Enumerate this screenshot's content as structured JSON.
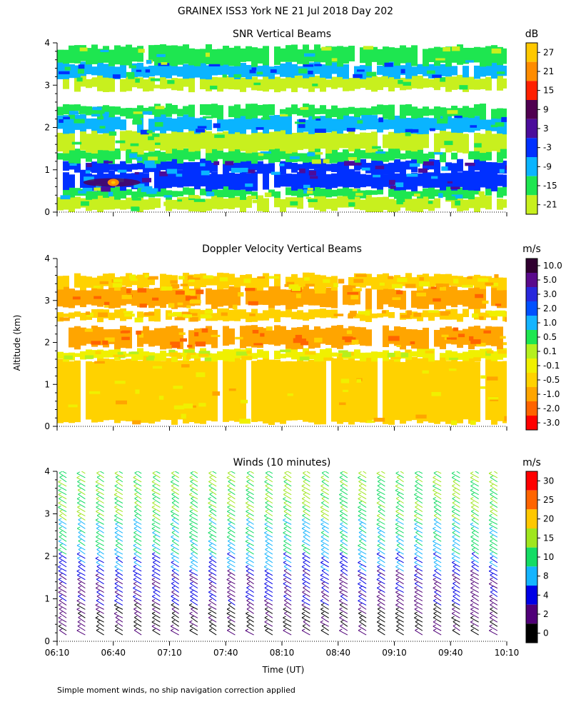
{
  "figure": {
    "title": "GRAINEX ISS3 York NE  21 Jul 2018 Day 202",
    "ylabel": "Altitude (km)",
    "xlabel": "Time (UT)",
    "footnote": "Simple moment winds, no ship navigation correction applied",
    "x_ticks": [
      "06:10",
      "06:40",
      "07:10",
      "07:40",
      "08:10",
      "08:40",
      "09:10",
      "09:40",
      "10:10"
    ],
    "y_ticks": [
      "0",
      "1",
      "2",
      "3",
      "4"
    ]
  },
  "chart_data": [
    {
      "type": "heatmap",
      "title": "SNR Vertical Beams",
      "units": "dB",
      "x_range": [
        "06:10",
        "10:10"
      ],
      "ylim": [
        0,
        4
      ],
      "colorbar": [
        {
          "label": "27",
          "color": "#ffc800"
        },
        {
          "label": "21",
          "color": "#ff8c00"
        },
        {
          "label": "15",
          "color": "#ff2000"
        },
        {
          "label": "9",
          "color": "#500050"
        },
        {
          "label": "3",
          "color": "#4b0c9b"
        },
        {
          "label": "-3",
          "color": "#0030ff"
        },
        {
          "label": "-9",
          "color": "#0ab4ff"
        },
        {
          "label": "-15",
          "color": "#1ee650"
        },
        {
          "label": "-21",
          "color": "#c8f01e"
        }
      ],
      "layers": [
        {
          "alt_low": 0.05,
          "alt_high": 0.35,
          "level": "-21"
        },
        {
          "alt_low": 0.35,
          "alt_high": 0.55,
          "level": "-15"
        },
        {
          "alt_low": 0.55,
          "alt_high": 0.95,
          "level": "-3"
        },
        {
          "alt_low": 0.95,
          "alt_high": 1.2,
          "level": "-3"
        },
        {
          "alt_low": 1.2,
          "alt_high": 1.45,
          "level": "-15"
        },
        {
          "alt_low": 1.45,
          "alt_high": 1.9,
          "level": "-21"
        },
        {
          "alt_low": 1.9,
          "alt_high": 2.25,
          "level": "-9"
        },
        {
          "alt_low": 2.25,
          "alt_high": 2.5,
          "level": "-15"
        },
        {
          "alt_low": 2.9,
          "alt_high": 3.2,
          "level": "-21"
        },
        {
          "alt_low": 3.2,
          "alt_high": 3.5,
          "level": "-9"
        },
        {
          "alt_low": 3.5,
          "alt_high": 3.9,
          "level": "-15"
        }
      ],
      "hotspot": {
        "time": "06:40",
        "alt": 0.7,
        "level": "21"
      }
    },
    {
      "type": "heatmap",
      "title": "Doppler Velocity Vertical Beams",
      "units": "m/s",
      "x_range": [
        "06:10",
        "10:10"
      ],
      "ylim": [
        0,
        4
      ],
      "colorbar": [
        {
          "label": "10.0",
          "color": "#300030"
        },
        {
          "label": "5.0",
          "color": "#5a0a8c"
        },
        {
          "label": "3.0",
          "color": "#2828dc"
        },
        {
          "label": "2.0",
          "color": "#0050ff"
        },
        {
          "label": "1.0",
          "color": "#14b4ff"
        },
        {
          "label": "0.5",
          "color": "#1ee650"
        },
        {
          "label": "0.1",
          "color": "#b4f01e"
        },
        {
          "label": "-0.1",
          "color": "#f0f000"
        },
        {
          "label": "-0.5",
          "color": "#ffd200"
        },
        {
          "label": "-1.0",
          "color": "#ffa500"
        },
        {
          "label": "-2.0",
          "color": "#ff6400"
        },
        {
          "label": "-3.0",
          "color": "#ff0000"
        }
      ],
      "layers": [
        {
          "alt_low": 0.1,
          "alt_high": 1.6,
          "level": "-0.5"
        },
        {
          "alt_low": 1.6,
          "alt_high": 1.8,
          "level": "-0.1"
        },
        {
          "alt_low": 1.9,
          "alt_high": 2.35,
          "level": "-1.0"
        },
        {
          "alt_low": 2.55,
          "alt_high": 2.75,
          "level": "-0.5"
        },
        {
          "alt_low": 2.85,
          "alt_high": 3.3,
          "level": "-1.0"
        },
        {
          "alt_low": 3.3,
          "alt_high": 3.6,
          "level": "-0.5"
        }
      ]
    },
    {
      "type": "scatter",
      "title": "Winds (10 minutes)",
      "units": "m/s",
      "x_range": [
        "06:10",
        "10:10"
      ],
      "ylim": [
        0,
        4
      ],
      "colorbar": [
        {
          "label": "30",
          "color": "#ff0000"
        },
        {
          "label": "25",
          "color": "#ff6400"
        },
        {
          "label": "20",
          "color": "#ffc800"
        },
        {
          "label": "15",
          "color": "#a0e61e"
        },
        {
          "label": "10",
          "color": "#14dc64"
        },
        {
          "label": "8",
          "color": "#14b4ff"
        },
        {
          "label": "4",
          "color": "#0000e6"
        },
        {
          "label": "2",
          "color": "#500078"
        },
        {
          "label": "0",
          "color": "#000000"
        }
      ],
      "profile_times": [
        "06:15",
        "06:25",
        "06:35",
        "06:45",
        "06:55",
        "07:05",
        "07:15",
        "07:25",
        "07:35",
        "07:45",
        "07:55",
        "08:05",
        "08:15",
        "08:25",
        "08:35",
        "08:45",
        "08:55",
        "09:05",
        "09:15",
        "09:25",
        "09:35",
        "09:45",
        "09:55",
        "10:05"
      ],
      "speed_profile": [
        {
          "alt": 0.2,
          "speed": 2
        },
        {
          "alt": 0.6,
          "speed": 2
        },
        {
          "alt": 1.0,
          "speed": 4
        },
        {
          "alt": 1.4,
          "speed": 4
        },
        {
          "alt": 1.8,
          "speed": 8
        },
        {
          "alt": 2.2,
          "speed": 10
        },
        {
          "alt": 2.6,
          "speed": 10
        },
        {
          "alt": 3.0,
          "speed": 15
        },
        {
          "alt": 3.4,
          "speed": 15
        },
        {
          "alt": 3.8,
          "speed": 15
        },
        {
          "alt": 4.1,
          "speed": 15
        }
      ]
    }
  ]
}
